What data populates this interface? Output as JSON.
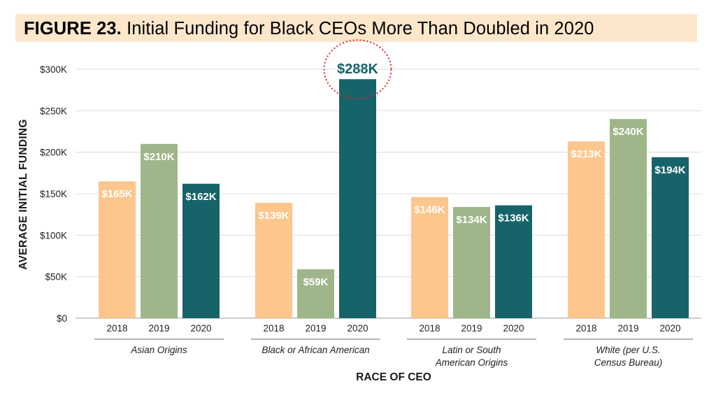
{
  "figure_label": "FIGURE 23.",
  "figure_title": "Initial Funding for Black CEOs More Than Doubled in 2020",
  "chart_data": {
    "type": "bar",
    "title": "Initial Funding for Black CEOs More Than Doubled in 2020",
    "ylabel": "AVERAGE INITIAL FUNDING",
    "xlabel": "RACE OF CEO",
    "ylim": [
      0,
      300000
    ],
    "yticks": [
      0,
      50000,
      100000,
      150000,
      200000,
      250000,
      300000
    ],
    "ytick_labels": [
      "$0",
      "$50K",
      "$100K",
      "$150K",
      "$200K",
      "$250K",
      "$300K"
    ],
    "grid": true,
    "legend": "none",
    "groups": [
      {
        "name": "Asian Origins",
        "name_lines": [
          "Asian Origins"
        ]
      },
      {
        "name": "Black or African American",
        "name_lines": [
          "Black or African American"
        ]
      },
      {
        "name": "Latin or South American Origins",
        "name_lines": [
          "Latin or South",
          "American Origins"
        ]
      },
      {
        "name": "White (per U.S. Census Bureau)",
        "name_lines": [
          "White (per U.S.",
          "Census Bureau)"
        ]
      }
    ],
    "series": [
      {
        "name": "2018",
        "color": "#fcc68c",
        "values": [
          165000,
          139000,
          146000,
          213000
        ],
        "labels": [
          "$165K",
          "$139K",
          "$146K",
          "$213K"
        ]
      },
      {
        "name": "2019",
        "color": "#9fb68a",
        "values": [
          210000,
          59000,
          134000,
          240000
        ],
        "labels": [
          "$210K",
          "$59K",
          "$134K",
          "$240K"
        ]
      },
      {
        "name": "2020",
        "color": "#17636a",
        "values": [
          162000,
          288000,
          136000,
          194000
        ],
        "labels": [
          "$162K",
          "$288K",
          "$136K",
          "$194K"
        ]
      }
    ],
    "highlight": {
      "group": 1,
      "series": 2,
      "label": "$288K",
      "annotation_color": "#d9262b"
    }
  }
}
